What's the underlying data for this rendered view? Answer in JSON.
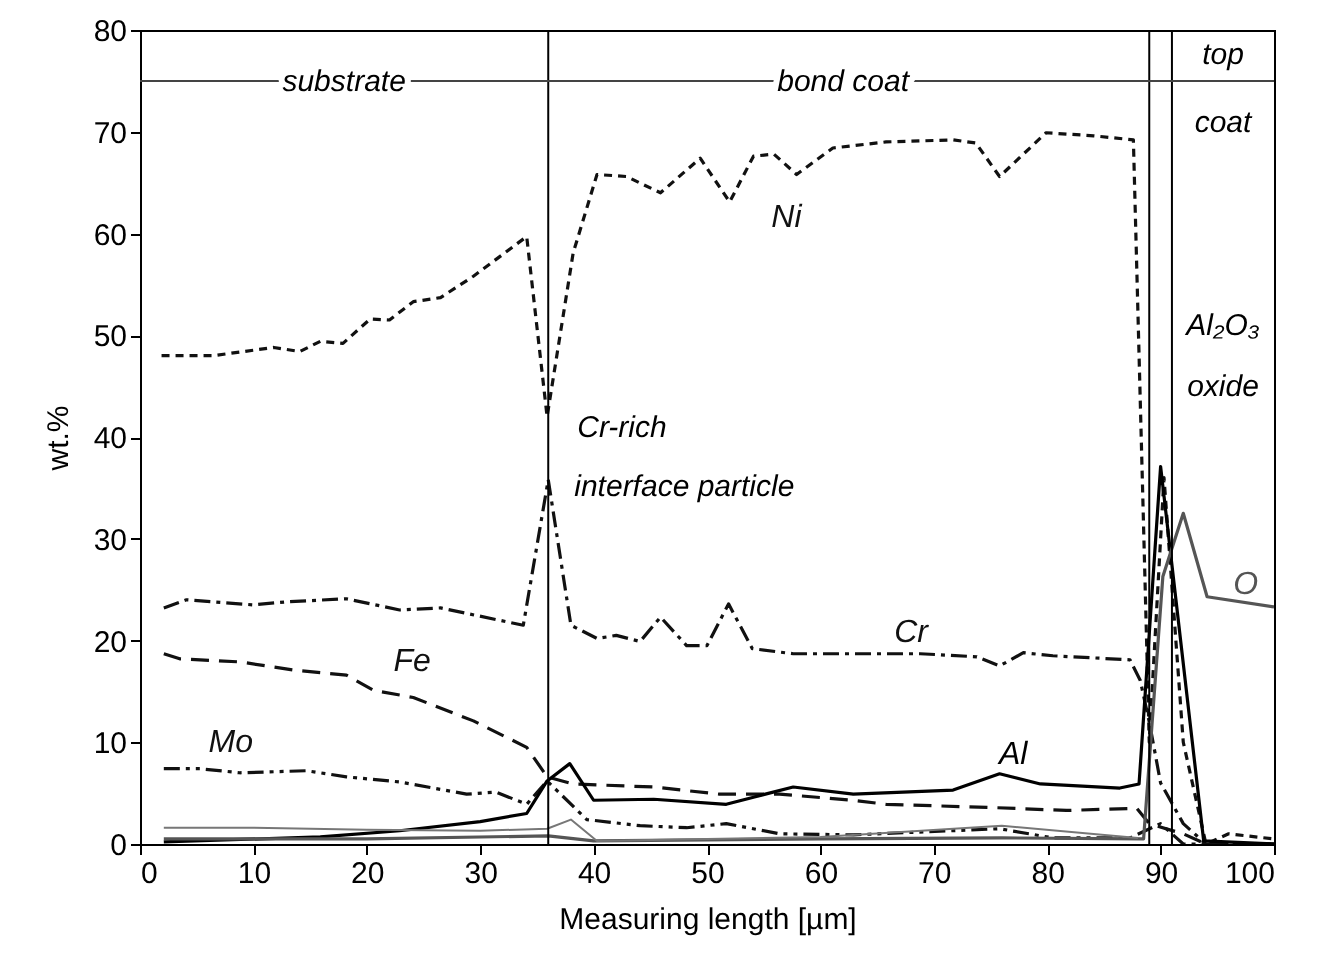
{
  "chart_data": {
    "type": "line",
    "xlabel": "Measuring length [µm]",
    "ylabel": "wt.%",
    "xlim": [
      0,
      100
    ],
    "ylim": [
      0,
      80
    ],
    "xticks": [
      0,
      10,
      20,
      30,
      40,
      50,
      60,
      70,
      80,
      90,
      100
    ],
    "yticks": [
      0,
      10,
      20,
      30,
      40,
      50,
      60,
      70,
      80
    ],
    "grid": false,
    "marker": "none",
    "series": [
      {
        "name": "Ni",
        "color": "#111111",
        "line_style": "dotted",
        "x": [
          1.9,
          6.5,
          11.8,
          14.1,
          15.9,
          17.9,
          20.3,
          22,
          24.1,
          26.5,
          29.4,
          34.1,
          35.9,
          38.2,
          40.3,
          42.9,
          45.9,
          49.4,
          52,
          54.1,
          55.9,
          57.9,
          61.1,
          65.8,
          71.7,
          73.7,
          75.8,
          79.9,
          84.1,
          87.6,
          89,
          90.3,
          92,
          94,
          96,
          100
        ],
        "values": [
          48,
          48,
          48.8,
          48.4,
          49.4,
          49.2,
          51.6,
          51.5,
          53.3,
          53.7,
          55.8,
          59.7,
          42,
          58.1,
          65.8,
          65.6,
          64,
          67.4,
          63.1,
          67.6,
          67.8,
          65.8,
          68.4,
          69,
          69.2,
          68.9,
          65.6,
          69.9,
          69.6,
          69.2,
          10,
          36,
          10,
          0,
          1,
          0.5
        ]
      },
      {
        "name": "Cr",
        "color": "#111111",
        "line_style": "dashdot",
        "x": [
          2.1,
          4.1,
          10,
          12.9,
          18.2,
          22.9,
          26.5,
          33.8,
          36,
          38,
          40.3,
          42,
          44.1,
          45.9,
          48.2,
          50,
          51.9,
          54,
          57.6,
          68.8,
          73.8,
          75.8,
          77.9,
          80.5,
          87.3,
          88.2,
          89,
          90,
          92,
          94,
          100
        ],
        "values": [
          23.2,
          24,
          23.5,
          23.8,
          24.1,
          23,
          23.2,
          21.5,
          35.8,
          21.5,
          20.2,
          20.5,
          19.9,
          22.3,
          19.5,
          19.5,
          23.6,
          19.2,
          18.7,
          18.7,
          18.4,
          17.5,
          18.8,
          18.5,
          18.1,
          16.1,
          12,
          6,
          2,
          0,
          0
        ]
      },
      {
        "name": "Fe",
        "color": "#111111",
        "line_style": "dashed",
        "x": [
          2.1,
          3.5,
          8.8,
          13.5,
          18.2,
          20.6,
          24.1,
          29.4,
          34.1,
          35.9,
          38.2,
          45.3,
          51.1,
          56.4,
          62.9,
          65.8,
          74.7,
          81.7,
          87.9,
          89,
          92,
          94,
          100
        ],
        "values": [
          18.7,
          18.2,
          17.9,
          17.1,
          16.6,
          15.1,
          14.4,
          12.1,
          9.5,
          6.6,
          5.9,
          5.6,
          4.9,
          4.9,
          4.3,
          3.9,
          3.6,
          3.3,
          3.5,
          2,
          1,
          0,
          0
        ]
      },
      {
        "name": "Mo",
        "color": "#111111",
        "line_style": "dashdotdot",
        "x": [
          2.1,
          5.3,
          8.8,
          14.7,
          18.2,
          22.9,
          28.8,
          31.4,
          34.1,
          35.9,
          39.4,
          44.1,
          48.2,
          51.7,
          56.4,
          62.9,
          75.8,
          80.5,
          87.3,
          90,
          92,
          100
        ],
        "values": [
          7.4,
          7.4,
          7,
          7.2,
          6.6,
          6.1,
          4.9,
          5.1,
          3.9,
          6.2,
          2.4,
          1.8,
          1.6,
          2,
          1,
          0.9,
          1.5,
          0.6,
          0.6,
          2,
          0,
          0
        ]
      },
      {
        "name": "Al",
        "color": "#000000",
        "line_style": "solid",
        "x": [
          2.1,
          15.9,
          22.9,
          30,
          34.1,
          35.9,
          37.9,
          40,
          45.3,
          51.7,
          54.1,
          57.6,
          62.9,
          71.7,
          75.8,
          79.4,
          86.4,
          88.1,
          90,
          93.8,
          100
        ],
        "values": [
          0.2,
          0.7,
          1.3,
          2.2,
          3,
          6.2,
          7.9,
          4.3,
          4.4,
          3.9,
          4.6,
          5.6,
          4.9,
          5.3,
          6.9,
          5.9,
          5.5,
          5.9,
          37.1,
          0.3,
          0
        ]
      },
      {
        "name": "O",
        "color": "#555555",
        "line_style": "solid",
        "x": [
          2.1,
          20,
          36,
          40,
          60,
          76,
          88.5,
          90.2,
          92,
          94.1,
          100
        ],
        "values": [
          0.5,
          0.5,
          0.8,
          0.3,
          0.5,
          0.6,
          0.5,
          26.3,
          32.5,
          24.3,
          23.3
        ]
      },
      {
        "color": "#777777",
        "line_style": "solid",
        "x": [
          2.1,
          10,
          20,
          30,
          35.9,
          38,
          40.3,
          50,
          60,
          76,
          88
        ],
        "values": [
          1.6,
          1.6,
          1.4,
          1.3,
          1.5,
          2.4,
          0.3,
          0.5,
          0.7,
          1.8,
          0.6
        ]
      }
    ],
    "ref_lines": [
      {
        "axis": "x",
        "value": 36,
        "color": "#000000"
      },
      {
        "axis": "x",
        "value": 89,
        "color": "#000000"
      },
      {
        "axis": "x",
        "value": 91,
        "color": "#000000"
      },
      {
        "axis": "y",
        "value": 75,
        "color": "#444444"
      }
    ],
    "annotations": [
      "substrate",
      "bond coat",
      "top",
      "coat",
      "Cr-rich",
      "interface particle",
      "Al₂O₃",
      "oxide"
    ]
  }
}
